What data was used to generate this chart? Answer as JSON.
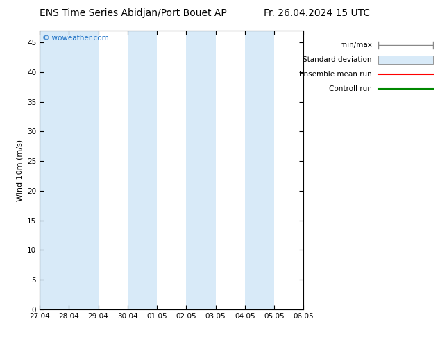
{
  "title_left": "ENS Time Series Abidjan/Port Bouet AP",
  "title_right": "Fr. 26.04.2024 15 UTC",
  "ylabel": "Wind 10m (m/s)",
  "watermark": "© woweather.com",
  "watermark_color": "#1a6fc4",
  "ylim": [
    0,
    47
  ],
  "yticks": [
    0,
    5,
    10,
    15,
    20,
    25,
    30,
    35,
    40,
    45
  ],
  "xtick_labels": [
    "27.04",
    "28.04",
    "29.04",
    "30.04",
    "01.05",
    "02.05",
    "03.05",
    "04.05",
    "05.05",
    "06.05"
  ],
  "bg_color": "#ffffff",
  "plot_bg_color": "#ffffff",
  "shaded_color": "#d8eaf8",
  "shaded_bands": [
    0,
    1,
    3,
    5,
    7,
    9
  ],
  "n_ticks": 10,
  "legend_entries": [
    {
      "label": "min/max",
      "color": "#aaaaaa",
      "style": "errorbar"
    },
    {
      "label": "Standard deviation",
      "color": "#c8ddf0",
      "style": "fill"
    },
    {
      "label": "Ensemble mean run",
      "color": "#ff0000",
      "style": "line"
    },
    {
      "label": "Controll run",
      "color": "#008800",
      "style": "line"
    }
  ],
  "title_fontsize": 10,
  "axis_fontsize": 8,
  "tick_fontsize": 7.5,
  "legend_fontsize": 7.5
}
